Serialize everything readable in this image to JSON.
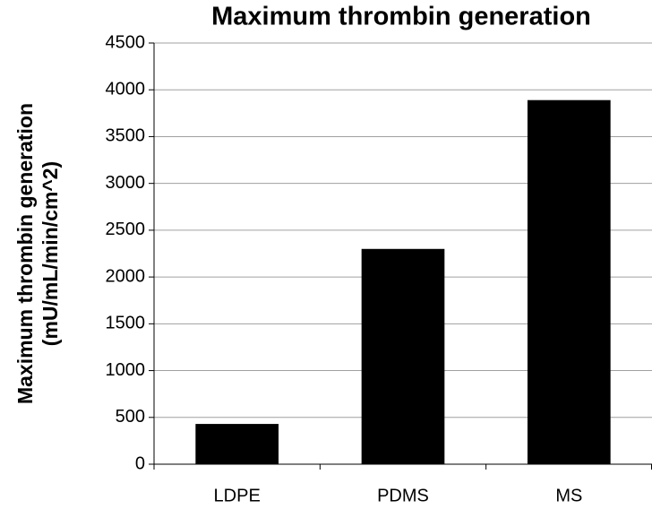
{
  "chart_data": {
    "type": "bar",
    "title": "Maximum thrombin generation",
    "ylabel_lines": [
      "Maximum thrombin generation",
      "(mU/mL/min/cm^2)"
    ],
    "categories": [
      "LDPE",
      "PDMS",
      "MS"
    ],
    "values": [
      430,
      2300,
      3890
    ],
    "color": "#000000",
    "ylim": [
      0,
      4500
    ],
    "yticks": [
      0,
      500,
      1000,
      1500,
      2000,
      2500,
      3000,
      3500,
      4000,
      4500
    ],
    "grid": true
  }
}
